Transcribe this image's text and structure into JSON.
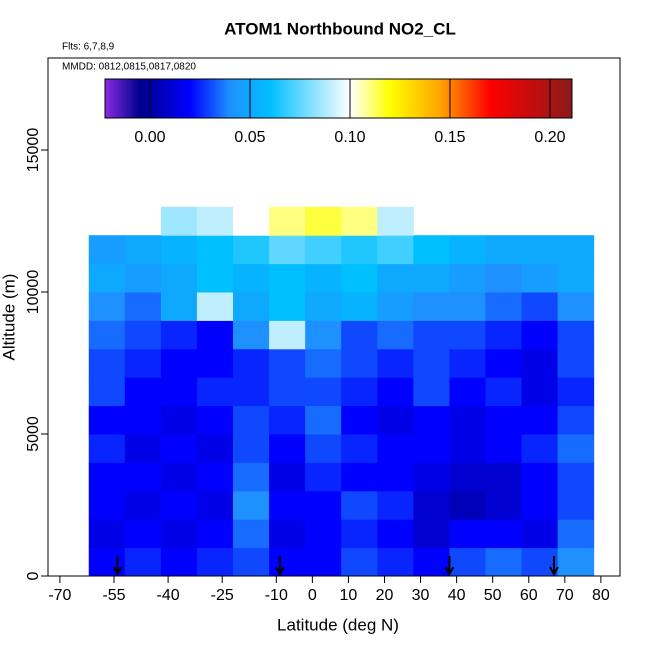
{
  "chart_data": {
    "type": "heatmap",
    "title": "ATOM1 Northbound NO2_CL",
    "subtitle": "Flts: 6,7,8,9",
    "annotation": "MMDD: 0812,0815,0817,0820",
    "xlabel": "Latitude (deg N)",
    "ylabel": "Altitude (m)",
    "xlim": [
      -73.3,
      85.3
    ],
    "ylim": [
      0,
      18240
    ],
    "xticks": [
      -70,
      -55,
      -40,
      -25,
      -10,
      0,
      10,
      20,
      30,
      40,
      50,
      60,
      70,
      80
    ],
    "yticks": [
      0,
      5000,
      10000,
      15000
    ],
    "x_edges": [
      -62,
      -52,
      -42,
      -32,
      -22,
      -12,
      -2,
      8,
      18,
      28,
      38,
      48,
      58,
      68,
      78
    ],
    "y_edges": [
      0,
      1000,
      2000,
      3000,
      4000,
      5000,
      6000,
      7000,
      8000,
      9000,
      10000,
      11000,
      12000,
      13000
    ],
    "z": [
      [
        0.02,
        0.025,
        0.02,
        0.025,
        0.03,
        0.02,
        0.02,
        0.03,
        0.025,
        0.02,
        0.03,
        0.035,
        0.03,
        0.04
      ],
      [
        0.015,
        0.02,
        0.015,
        0.02,
        0.035,
        0.015,
        0.02,
        0.025,
        0.02,
        0.01,
        0.02,
        0.02,
        0.015,
        0.035
      ],
      [
        0.02,
        0.015,
        0.02,
        0.015,
        0.04,
        0.02,
        0.02,
        0.03,
        0.025,
        0.01,
        0.005,
        0.01,
        0.02,
        0.03
      ],
      [
        0.02,
        0.02,
        0.015,
        0.02,
        0.035,
        0.015,
        0.025,
        0.02,
        0.02,
        0.015,
        0.01,
        0.01,
        0.02,
        0.03
      ],
      [
        0.025,
        0.015,
        0.02,
        0.015,
        0.03,
        0.02,
        0.03,
        0.025,
        0.02,
        0.02,
        0.015,
        0.02,
        0.025,
        0.035
      ],
      [
        0.02,
        0.02,
        0.015,
        0.02,
        0.03,
        0.025,
        0.035,
        0.02,
        0.015,
        0.02,
        0.015,
        0.02,
        0.02,
        0.03
      ],
      [
        0.03,
        0.02,
        0.02,
        0.025,
        0.025,
        0.03,
        0.03,
        0.025,
        0.02,
        0.03,
        0.02,
        0.025,
        0.015,
        0.025
      ],
      [
        0.03,
        0.025,
        0.02,
        0.02,
        0.025,
        0.03,
        0.035,
        0.03,
        0.025,
        0.03,
        0.025,
        0.02,
        0.015,
        0.03
      ],
      [
        0.035,
        0.03,
        0.025,
        0.02,
        0.04,
        0.09,
        0.04,
        0.03,
        0.035,
        0.03,
        0.03,
        0.025,
        0.02,
        0.03
      ],
      [
        0.04,
        0.035,
        0.05,
        0.09,
        0.05,
        0.06,
        0.05,
        0.055,
        0.045,
        0.04,
        0.04,
        0.035,
        0.03,
        0.04
      ],
      [
        0.05,
        0.045,
        0.05,
        0.06,
        0.055,
        0.06,
        0.055,
        0.06,
        0.05,
        0.05,
        0.045,
        0.04,
        0.045,
        0.05
      ],
      [
        0.045,
        0.05,
        0.055,
        0.06,
        0.065,
        0.075,
        0.07,
        0.065,
        0.07,
        0.06,
        0.055,
        0.05,
        0.05,
        0.05
      ],
      [
        null,
        null,
        0.085,
        0.09,
        0.1,
        0.11,
        0.115,
        0.11,
        0.09,
        null,
        null,
        null,
        null,
        null
      ]
    ],
    "colorbar": {
      "lim": [
        -0.0225,
        0.211
      ],
      "ticks": [
        {
          "value": 0,
          "label": "0.00"
        },
        {
          "value": 0.05,
          "label": "0.05"
        },
        {
          "value": 0.1,
          "label": "0.10"
        },
        {
          "value": 0.15,
          "label": "0.15"
        },
        {
          "value": 0.2,
          "label": "0.20"
        }
      ],
      "scale": [
        [
          -0.0225,
          "#8a2be2"
        ],
        [
          -0.005,
          "#00008b"
        ],
        [
          0.02,
          "#0000ff"
        ],
        [
          0.04,
          "#1e90ff"
        ],
        [
          0.06,
          "#00bfff"
        ],
        [
          0.1,
          "#ffffff"
        ],
        [
          0.12,
          "#ffff00"
        ],
        [
          0.145,
          "#ffa500"
        ],
        [
          0.17,
          "#ff0000"
        ],
        [
          0.211,
          "#8b1a1a"
        ]
      ]
    },
    "arrows": [
      -54,
      -9,
      38,
      67
    ]
  }
}
